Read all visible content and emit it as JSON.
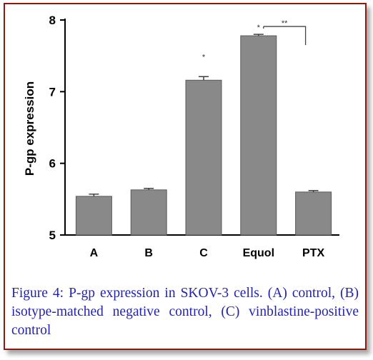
{
  "chart_data": {
    "type": "bar",
    "ylabel": "P-gp expression",
    "categories": [
      "A",
      "B",
      "C",
      "Equol",
      "PTX"
    ],
    "values": [
      5.54,
      5.63,
      7.16,
      7.78,
      5.6
    ],
    "errors": [
      0.03,
      0.02,
      0.05,
      0.02,
      0.02
    ],
    "ylim": [
      5,
      8
    ],
    "yticks": [
      "5",
      "6",
      "7",
      "8"
    ],
    "yticks_values": [
      5,
      6,
      7,
      8
    ],
    "significance": [
      {
        "category_index": 2,
        "label": "*"
      },
      {
        "category_index": 3,
        "label": "*"
      }
    ],
    "bracket": {
      "from_index": 3,
      "to_index": 4,
      "label": "**"
    },
    "bar_color": "#898989",
    "grid": false
  },
  "caption": "Figure 4: P-gp expression in SKOV-3 cells. (A) control, (B) isotype-matched negative control, (C) vinblastine-positive control",
  "frame_color": "#8b1a10",
  "caption_color": "#2323b0"
}
